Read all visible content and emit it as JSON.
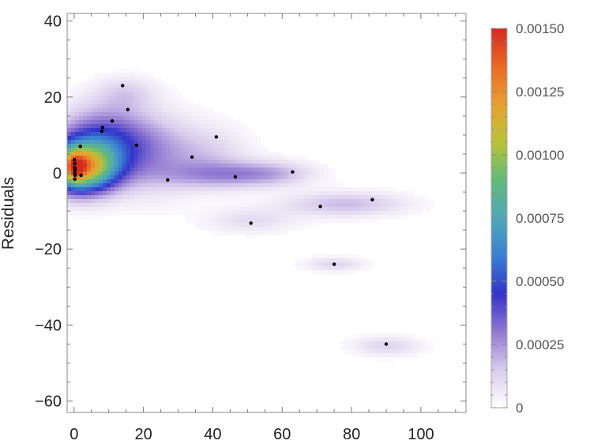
{
  "chart_data": {
    "type": "heatmap",
    "title": "",
    "xlabel": "",
    "ylabel": "Residuals",
    "xlim": [
      -2,
      113
    ],
    "ylim": [
      -63,
      42
    ],
    "x_ticks": [
      "0",
      "20",
      "40",
      "60",
      "80",
      "100"
    ],
    "y_ticks": [
      "40",
      "20",
      "0",
      "−20",
      "−40",
      "−60"
    ],
    "x_tick_values": [
      0,
      20,
      40,
      60,
      80,
      100
    ],
    "y_tick_values": [
      40,
      20,
      0,
      -20,
      -40,
      -60
    ],
    "grid": false,
    "colorbar": {
      "range": [
        0,
        0.0015
      ],
      "tick_values": [
        0,
        0.00025,
        0.0005,
        0.00075,
        0.001,
        0.00125,
        0.0015
      ],
      "tick_labels": [
        "0",
        "0.00025",
        "0.00050",
        "0.00075",
        "0.00100",
        "0.00125",
        "0.00150"
      ],
      "colors": [
        "#ffffff",
        "#d8ccec",
        "#9179d2",
        "#3333c8",
        "#3a7fd2",
        "#4fa8b8",
        "#62ba7a",
        "#b8c23a",
        "#e8a030",
        "#e96a26",
        "#d42a22"
      ]
    },
    "points": [
      {
        "x": 0.1,
        "y": 3.5
      },
      {
        "x": 0.2,
        "y": 2.5
      },
      {
        "x": 0.2,
        "y": 1.5
      },
      {
        "x": 0.3,
        "y": 0.8
      },
      {
        "x": 0.2,
        "y": 0.0
      },
      {
        "x": 0.3,
        "y": -0.6
      },
      {
        "x": 0.2,
        "y": -1.6
      },
      {
        "x": 1.8,
        "y": 7.0
      },
      {
        "x": 2.0,
        "y": -0.6
      },
      {
        "x": 8.0,
        "y": 11.0
      },
      {
        "x": 8.2,
        "y": 12.0
      },
      {
        "x": 11.0,
        "y": 13.7
      },
      {
        "x": 14.0,
        "y": 23.0
      },
      {
        "x": 15.5,
        "y": 16.7
      },
      {
        "x": 18.0,
        "y": 7.3
      },
      {
        "x": 27.0,
        "y": -1.8
      },
      {
        "x": 34.0,
        "y": 4.2
      },
      {
        "x": 41.0,
        "y": 9.5
      },
      {
        "x": 46.5,
        "y": -1.0
      },
      {
        "x": 51.0,
        "y": -13.2
      },
      {
        "x": 63.0,
        "y": 0.3
      },
      {
        "x": 71.0,
        "y": -8.8
      },
      {
        "x": 75.0,
        "y": -24.0
      },
      {
        "x": 86.0,
        "y": -7.0
      },
      {
        "x": 90.0,
        "y": -45.0
      }
    ],
    "density_blobs": [
      {
        "x": 2,
        "y": 1.5,
        "sx": 7,
        "sy": 4.5,
        "w": 0.00115
      },
      {
        "x": 0.5,
        "y": 1.5,
        "sx": 2,
        "sy": 2.5,
        "w": 0.0004
      },
      {
        "x": 8,
        "y": 9,
        "sx": 9,
        "sy": 6,
        "w": 0.00035
      },
      {
        "x": 22,
        "y": 5,
        "sx": 10,
        "sy": 7,
        "w": 0.00022
      },
      {
        "x": 15,
        "y": 21,
        "sx": 6,
        "sy": 3,
        "w": 0.00012
      },
      {
        "x": 40,
        "y": 5,
        "sx": 8,
        "sy": 5,
        "w": 0.0001
      },
      {
        "x": 44,
        "y": -0.5,
        "sx": 12,
        "sy": 2.5,
        "w": 0.00022
      },
      {
        "x": 58,
        "y": 0,
        "sx": 8,
        "sy": 2.2,
        "w": 0.00012
      },
      {
        "x": 51,
        "y": -12.5,
        "sx": 9,
        "sy": 2.3,
        "w": 0.0001
      },
      {
        "x": 78,
        "y": -8.2,
        "sx": 12,
        "sy": 2.2,
        "w": 0.00018
      },
      {
        "x": 75,
        "y": -24,
        "sx": 6,
        "sy": 1.3,
        "w": 0.00012
      },
      {
        "x": 90,
        "y": -45.5,
        "sx": 7,
        "sy": 1.8,
        "w": 0.00012
      }
    ]
  }
}
